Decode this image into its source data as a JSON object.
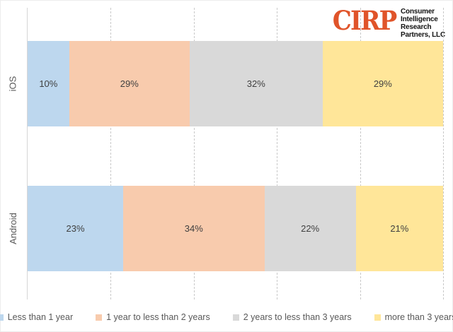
{
  "logo": {
    "acronym": "CIRP",
    "org_lines": [
      "Consumer",
      "Intelligence",
      "Research",
      "Partners, LLC"
    ],
    "accent_color": "#E0542A"
  },
  "chart_data": {
    "type": "bar",
    "orientation": "horizontal",
    "stacked": true,
    "unit": "%",
    "categories": [
      "iOS",
      "Android"
    ],
    "series": [
      {
        "name": "Less than 1 year",
        "color": "#BDD7EE",
        "values": [
          10,
          23
        ]
      },
      {
        "name": "1 year to less than 2 years",
        "color": "#F8CBAD",
        "values": [
          29,
          34
        ]
      },
      {
        "name": "2 years to less than 3 years",
        "color": "#D9D9D9",
        "values": [
          32,
          22
        ]
      },
      {
        "name": "more than 3 years",
        "color": "#FFE699",
        "values": [
          29,
          21
        ]
      }
    ],
    "xlim": [
      0,
      100
    ],
    "gridlines_percent": [
      20,
      40,
      60,
      80,
      100
    ],
    "grid_style": "dashed",
    "legend_position": "bottom",
    "data_labels": true
  }
}
